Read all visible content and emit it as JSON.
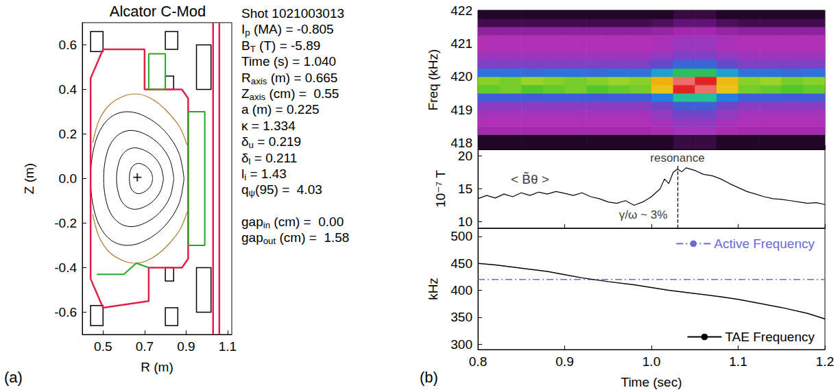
{
  "chart_data": [
    {
      "type": "line",
      "panel": "(a)",
      "title": "Alcator C-Mod",
      "x_label": "R (m)",
      "y_label": "Z (m)",
      "xlim": [
        0.4,
        1.12
      ],
      "xticks": [
        0.5,
        0.7,
        0.9,
        1.1
      ],
      "ylim": [
        -0.7,
        0.7
      ],
      "yticks": [
        -0.6,
        -0.4,
        -0.2,
        {
          "value": 0,
          "label": "0.0"
        },
        0.2,
        0.4,
        0.6
      ],
      "grid": false,
      "marker": "cross",
      "parameters": [
        {
          "base": "Shot 1021003013",
          "sub": "",
          "rest": ""
        },
        {
          "base": "I",
          "sub": "p",
          "rest": " (MA) = -0.805"
        },
        {
          "base": "B",
          "sub": "T",
          "rest": " (T) = -5.89"
        },
        {
          "base": "Time (s) = 1.040",
          "sub": "",
          "rest": ""
        },
        {
          "base": "R",
          "sub": "axis",
          "rest": " (m) = 0.665"
        },
        {
          "base": "Z",
          "sub": "axis",
          "rest": " (cm) =  0.55"
        },
        {
          "base": "a (m) = 0.225",
          "sub": "",
          "rest": ""
        },
        {
          "base": "κ = 1.334",
          "sub": "",
          "rest": ""
        },
        {
          "base": "δ",
          "sub": "u",
          "rest": " = 0.219"
        },
        {
          "base": "δ",
          "sub": "l",
          "rest": " = 0.211"
        },
        {
          "base": "l",
          "sub": "i",
          "rest": " = 1.43"
        },
        {
          "base": "q",
          "sub": "ψ",
          "rest": "(95) =  4.03"
        }
      ],
      "gaps": [
        {
          "base": "gap",
          "sub": "in",
          "rest": " (cm) =  0.00"
        },
        {
          "base": "gap",
          "sub": "out",
          "rest": " (cm) =  1.58"
        }
      ],
      "magnetic_axis": [
        0.665,
        0.0055
      ],
      "flux_surfaces": [
        [
          [
            0.89,
            0
          ],
          [
            0.865,
            0.115
          ],
          [
            0.798,
            0.212
          ],
          [
            0.707,
            0.277
          ],
          [
            0.616,
            0.3
          ],
          [
            0.539,
            0.277
          ],
          [
            0.483,
            0.212
          ],
          [
            0.451,
            0.115
          ],
          [
            0.44,
            0
          ],
          [
            0.451,
            -0.115
          ],
          [
            0.483,
            -0.212
          ],
          [
            0.539,
            -0.277
          ],
          [
            0.616,
            -0.3
          ],
          [
            0.707,
            -0.277
          ],
          [
            0.798,
            -0.212
          ],
          [
            0.865,
            -0.115
          ],
          [
            0.89,
            0
          ]
        ],
        [
          [
            0.841,
            0
          ],
          [
            0.822,
            0.083
          ],
          [
            0.772,
            0.153
          ],
          [
            0.703,
            0.199
          ],
          [
            0.635,
            0.216
          ],
          [
            0.577,
            0.199
          ],
          [
            0.535,
            0.153
          ],
          [
            0.511,
            0.083
          ],
          [
            0.503,
            0
          ],
          [
            0.511,
            -0.083
          ],
          [
            0.535,
            -0.153
          ],
          [
            0.577,
            -0.199
          ],
          [
            0.635,
            -0.216
          ],
          [
            0.703,
            -0.199
          ],
          [
            0.772,
            -0.153
          ],
          [
            0.822,
            -0.083
          ],
          [
            0.841,
            0
          ]
        ],
        [
          [
            0.791,
            0
          ],
          [
            0.778,
            0.053
          ],
          [
            0.745,
            0.098
          ],
          [
            0.699,
            0.127
          ],
          [
            0.653,
            0.138
          ],
          [
            0.615,
            0.127
          ],
          [
            0.587,
            0.098
          ],
          [
            0.571,
            0.053
          ],
          [
            0.565,
            0
          ],
          [
            0.571,
            -0.053
          ],
          [
            0.587,
            -0.098
          ],
          [
            0.615,
            -0.127
          ],
          [
            0.653,
            -0.138
          ],
          [
            0.699,
            -0.127
          ],
          [
            0.745,
            -0.098
          ],
          [
            0.778,
            -0.053
          ],
          [
            0.791,
            0
          ]
        ],
        [
          [
            0.739,
            0
          ],
          [
            0.733,
            0.026
          ],
          [
            0.716,
            0.048
          ],
          [
            0.694,
            0.062
          ],
          [
            0.671,
            0.068
          ],
          [
            0.651,
            0.062
          ],
          [
            0.637,
            0.048
          ],
          [
            0.629,
            0.026
          ],
          [
            0.627,
            0
          ],
          [
            0.629,
            -0.026
          ],
          [
            0.637,
            -0.048
          ],
          [
            0.651,
            -0.062
          ],
          [
            0.671,
            -0.068
          ],
          [
            0.694,
            -0.062
          ],
          [
            0.716,
            -0.048
          ],
          [
            0.733,
            -0.026
          ],
          [
            0.739,
            0
          ]
        ]
      ],
      "scrape_off_layer": [
        [
          [
            0.45,
            0.16
          ],
          [
            0.48,
            0.26
          ],
          [
            0.53,
            0.33
          ],
          [
            0.6,
            0.37
          ],
          [
            0.66,
            0.38
          ],
          [
            0.73,
            0.36
          ],
          [
            0.8,
            0.31
          ],
          [
            0.87,
            0.23
          ],
          [
            0.905,
            0.15
          ]
        ],
        [
          [
            0.45,
            -0.16
          ],
          [
            0.48,
            -0.26
          ],
          [
            0.53,
            -0.33
          ],
          [
            0.6,
            -0.37
          ],
          [
            0.66,
            -0.38
          ],
          [
            0.73,
            -0.36
          ],
          [
            0.8,
            -0.31
          ],
          [
            0.87,
            -0.23
          ],
          [
            0.905,
            -0.15
          ]
        ]
      ],
      "vessel": [
        [
          [
            0.44,
            -0.45
          ],
          [
            0.44,
            0.45
          ],
          [
            0.5,
            0.58
          ],
          [
            0.7,
            0.58
          ],
          [
            0.7,
            0.4
          ],
          [
            0.88,
            0.4
          ],
          [
            0.91,
            0.36
          ],
          [
            0.91,
            -0.36
          ],
          [
            0.88,
            -0.4
          ],
          [
            0.72,
            -0.4
          ],
          [
            0.72,
            -0.55
          ],
          [
            0.5,
            -0.58
          ],
          [
            0.44,
            -0.45
          ]
        ],
        [
          [
            1.03,
            -0.7
          ],
          [
            1.03,
            0.7
          ]
        ],
        [
          [
            1.06,
            -0.7
          ],
          [
            1.06,
            0.7
          ]
        ]
      ],
      "limiter": [
        [
          [
            0.91,
            -0.3
          ],
          [
            0.99,
            -0.3
          ],
          [
            0.99,
            0.3
          ],
          [
            0.91,
            0.3
          ],
          [
            0.91,
            -0.3
          ]
        ],
        [
          [
            0.72,
            0.4
          ],
          [
            0.8,
            0.4
          ],
          [
            0.8,
            0.56
          ],
          [
            0.72,
            0.56
          ],
          [
            0.72,
            0.4
          ]
        ],
        [
          [
            0.47,
            -0.43
          ],
          [
            0.6,
            -0.43
          ],
          [
            0.66,
            -0.38
          ],
          [
            0.72,
            -0.4
          ]
        ]
      ],
      "coils": [
        [
          0.44,
          0.5,
          0.57,
          0.66
        ],
        [
          0.8,
          0.86,
          0.58,
          0.66
        ],
        [
          0.95,
          1.02,
          0.4,
          0.6
        ],
        [
          0.8,
          0.84,
          0.4,
          0.46
        ],
        [
          0.8,
          0.84,
          -0.46,
          -0.4
        ],
        [
          0.95,
          1.02,
          -0.6,
          -0.4
        ],
        [
          0.44,
          0.5,
          -0.66,
          -0.57
        ],
        [
          0.8,
          0.86,
          -0.66,
          -0.58
        ]
      ]
    },
    {
      "type": "heatmap",
      "panel": "(b)",
      "y_label": "Freq (kHz)",
      "xlim": [
        0.8,
        1.2
      ],
      "xticks": [
        0.8,
        0.9,
        {
          "value": 1,
          "label": "1.0"
        },
        1.1,
        1.2
      ],
      "ylim": [
        417.8,
        422
      ],
      "yticks": [
        418,
        419,
        420,
        421,
        422
      ],
      "grid": false,
      "tick_labels": "y",
      "time_bins": [
        0.8,
        0.825,
        0.85,
        0.875,
        0.9,
        0.925,
        0.95,
        0.975,
        1.0,
        1.025,
        1.05,
        1.075,
        1.1,
        1.125,
        1.15,
        1.175,
        1.2
      ],
      "freq_bins": [
        417.8,
        418.25,
        418.5,
        418.75,
        419,
        419.25,
        419.5,
        419.75,
        420,
        420.25,
        420.5,
        420.75,
        421,
        421.25,
        421.5,
        421.75,
        422
      ],
      "value_range": [
        0,
        10
      ],
      "cells": [
        [
          0.3,
          0.3,
          0.3,
          0.3,
          0.3,
          0.3,
          0.3,
          0.3,
          0.3,
          0.5,
          0.5,
          0.3,
          0.3,
          0.3,
          0.3,
          0.3
        ],
        [
          1.8,
          1.8,
          1.8,
          1.8,
          1.8,
          1.8,
          1.8,
          1.8,
          1.9,
          2.2,
          2.2,
          1.9,
          1.8,
          1.8,
          1.8,
          1.8
        ],
        [
          2.0,
          2.0,
          2.0,
          2.0,
          2.0,
          2.0,
          2.0,
          2.0,
          2.2,
          2.5,
          2.5,
          2.2,
          2.0,
          2.0,
          2.0,
          2.0
        ],
        [
          2.2,
          2.2,
          2.2,
          2.2,
          2.2,
          2.2,
          2.2,
          2.2,
          2.5,
          3.0,
          3.0,
          2.5,
          2.2,
          2.2,
          2.2,
          2.2
        ],
        [
          2.6,
          2.6,
          2.6,
          2.6,
          2.6,
          2.6,
          2.6,
          2.6,
          3.0,
          3.8,
          3.8,
          3.0,
          2.6,
          2.6,
          2.6,
          2.6
        ],
        [
          3.8,
          3.8,
          3.7,
          3.8,
          3.8,
          3.7,
          3.8,
          3.8,
          4.5,
          5.8,
          5.8,
          4.5,
          3.8,
          3.8,
          3.7,
          3.8
        ],
        [
          6.8,
          6.9,
          6.7,
          6.8,
          6.9,
          6.7,
          6.8,
          6.9,
          7.8,
          9.4,
          9.6,
          7.8,
          6.9,
          6.8,
          6.7,
          6.8
        ],
        [
          7.0,
          6.9,
          7.1,
          7.0,
          6.9,
          7.0,
          7.1,
          7.0,
          8.0,
          9.6,
          9.4,
          7.9,
          7.0,
          7.1,
          6.9,
          7.0
        ],
        [
          4.2,
          4.2,
          4.1,
          4.2,
          4.2,
          4.1,
          4.2,
          4.2,
          5.0,
          6.2,
          6.2,
          5.0,
          4.2,
          4.2,
          4.1,
          4.2
        ],
        [
          2.8,
          2.8,
          2.8,
          2.8,
          2.8,
          2.8,
          2.8,
          2.8,
          3.2,
          4.0,
          4.0,
          3.2,
          2.8,
          2.8,
          2.8,
          2.8
        ],
        [
          2.3,
          2.3,
          2.3,
          2.3,
          2.3,
          2.3,
          2.3,
          2.3,
          2.5,
          2.8,
          2.8,
          2.5,
          2.3,
          2.3,
          2.3,
          2.3
        ],
        [
          2.0,
          2.0,
          2.0,
          2.0,
          2.0,
          2.0,
          2.0,
          2.0,
          2.1,
          2.4,
          2.4,
          2.1,
          2.0,
          2.0,
          2.0,
          2.0
        ],
        [
          2.0,
          2.0,
          2.0,
          2.0,
          2.0,
          2.0,
          2.0,
          2.0,
          2.1,
          2.3,
          2.3,
          2.1,
          2.0,
          2.0,
          2.0,
          2.0
        ],
        [
          1.5,
          1.5,
          1.5,
          1.5,
          1.5,
          1.5,
          1.5,
          1.5,
          1.6,
          1.8,
          1.8,
          1.6,
          1.5,
          1.5,
          1.5,
          1.5
        ],
        [
          0.6,
          0.6,
          0.6,
          0.6,
          0.6,
          0.6,
          0.6,
          0.6,
          0.7,
          0.9,
          0.9,
          0.7,
          0.6,
          0.6,
          0.6,
          0.6
        ],
        [
          0.3,
          0.3,
          0.3,
          0.3,
          0.3,
          0.3,
          0.3,
          0.3,
          0.3,
          0.5,
          0.5,
          0.3,
          0.3,
          0.3,
          0.3,
          0.3
        ]
      ]
    },
    {
      "type": "line",
      "y_label": "10⁻⁷ T",
      "color": "#000000",
      "xlim": [
        0.8,
        1.2
      ],
      "xticks": [
        0.8,
        0.9,
        {
          "value": 1,
          "label": "1.0"
        },
        1.1,
        1.2
      ],
      "ylim": [
        9,
        21
      ],
      "yticks": [
        10,
        15,
        20
      ],
      "grid": false,
      "tick_labels": "y",
      "x": [
        0.8,
        0.81,
        0.82,
        0.83,
        0.84,
        0.85,
        0.86,
        0.87,
        0.88,
        0.89,
        0.9,
        0.91,
        0.92,
        0.93,
        0.94,
        0.95,
        0.96,
        0.97,
        0.98,
        0.99,
        1.0,
        1.01,
        1.015,
        1.02,
        1.025,
        1.03,
        1.035,
        1.04,
        1.05,
        1.06,
        1.07,
        1.08,
        1.09,
        1.1,
        1.11,
        1.12,
        1.13,
        1.14,
        1.15,
        1.16,
        1.17,
        1.18,
        1.19,
        1.2
      ],
      "values": [
        13.5,
        14.0,
        13.6,
        14.2,
        13.8,
        14.4,
        14.0,
        14.5,
        14.2,
        14.6,
        14.3,
        14.0,
        14.4,
        13.8,
        13.5,
        13.0,
        12.8,
        13.2,
        12.5,
        13.0,
        13.8,
        15.0,
        16.5,
        15.8,
        17.5,
        18.0,
        17.6,
        18.2,
        17.8,
        17.2,
        17.0,
        16.5,
        15.8,
        15.2,
        14.6,
        14.2,
        13.8,
        13.5,
        13.4,
        13.2,
        13.0,
        12.8,
        12.9,
        12.6
      ],
      "vline": {
        "x": 1.03,
        "y": [
          9,
          18.6
        ]
      },
      "annotations": [
        {
          "text": "resonance",
          "x": 1.03,
          "y": 18.6
        },
        {
          "text": "γ/ω ~ 3%",
          "x": 1.02,
          "y": 11
        },
        {
          "text": "< B̃θ >",
          "x": 0.86,
          "y": 16.5
        }
      ]
    },
    {
      "type": "line",
      "x_label": "Time (sec)",
      "y_label": "kHz",
      "xlim": [
        0.8,
        1.2
      ],
      "xticks": [
        0.8,
        0.9,
        {
          "value": 1,
          "label": "1.0"
        },
        1.1,
        1.2
      ],
      "ylim": [
        290,
        515
      ],
      "yticks": [
        300,
        350,
        400,
        450,
        500
      ],
      "grid": false,
      "legend": "right",
      "series": [
        {
          "name": "Active Frequency",
          "color": "#6a6ad6",
          "line_style": "dashdot",
          "x": [
            0.8,
            1.2
          ],
          "values": [
            420,
            420
          ]
        },
        {
          "name": "TAE Frequency",
          "color": "#000000",
          "line_style": "solid",
          "x": [
            0.8,
            0.82,
            0.85,
            0.88,
            0.9,
            0.92,
            0.95,
            0.98,
            1.0,
            1.02,
            1.05,
            1.08,
            1.1,
            1.12,
            1.15,
            1.18,
            1.2
          ],
          "values": [
            450,
            447,
            441,
            435,
            429,
            423,
            416,
            410,
            405,
            400,
            394,
            388,
            383,
            377,
            368,
            357,
            347
          ]
        }
      ]
    }
  ]
}
